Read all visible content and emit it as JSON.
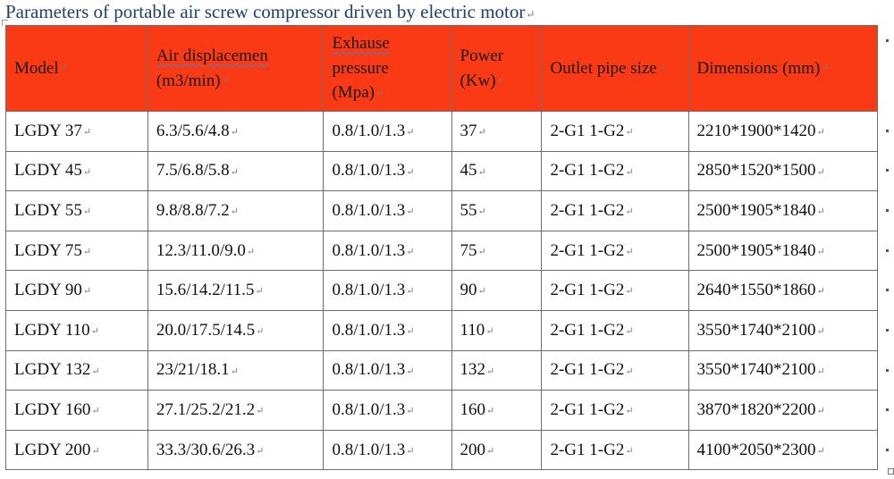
{
  "title": "Parameters of portable air screw compressor driven by electric motor",
  "mark": "↵",
  "colors": {
    "header_bg": "#fa3a14",
    "title_text": "#1f3f66",
    "border": "#6d6d6d"
  },
  "headers": {
    "model": "Model",
    "air_line1": "Air displacemen",
    "air_line2": "(m3/min)",
    "exh_line1": "Exhause",
    "exh_line2": "pressure",
    "exh_line3": "(Mpa)",
    "power_line1": "Power",
    "power_line2": "(Kw)",
    "pipe": "Outlet pipe size",
    "dim": "Dimensions (mm)"
  },
  "rows": [
    [
      "LGDY 37",
      "6.3/5.6/4.8",
      "0.8/1.0/1.3",
      "37",
      "2-G1 1-G2",
      "2210*1900*1420"
    ],
    [
      "LGDY 45",
      "7.5/6.8/5.8",
      "0.8/1.0/1.3",
      "45",
      "2-G1 1-G2",
      "2850*1520*1500"
    ],
    [
      "LGDY 55",
      "9.8/8.8/7.2",
      "0.8/1.0/1.3",
      "55",
      "2-G1 1-G2",
      "2500*1905*1840"
    ],
    [
      "LGDY 75",
      "12.3/11.0/9.0",
      "0.8/1.0/1.3",
      "75",
      "2-G1 1-G2",
      "2500*1905*1840"
    ],
    [
      "LGDY 90",
      "15.6/14.2/11.5",
      "0.8/1.0/1.3",
      "90",
      "2-G1 1-G2",
      "2640*1550*1860"
    ],
    [
      "LGDY 110",
      "20.0/17.5/14.5",
      "0.8/1.0/1.3",
      "110",
      "2-G1 1-G2",
      "3550*1740*2100"
    ],
    [
      "LGDY 132",
      "23/21/18.1",
      "0.8/1.0/1.3",
      "132",
      "2-G1 1-G2",
      "3550*1740*2100"
    ],
    [
      "LGDY 160",
      "27.1/25.2/21.2",
      "0.8/1.0/1.3",
      "160",
      "2-G1 1-G2",
      "3870*1820*2200"
    ],
    [
      "LGDY 200",
      "33.3/30.6/26.3",
      "0.8/1.0/1.3",
      "200",
      "2-G1 1-G2",
      "4100*2050*2300"
    ]
  ]
}
